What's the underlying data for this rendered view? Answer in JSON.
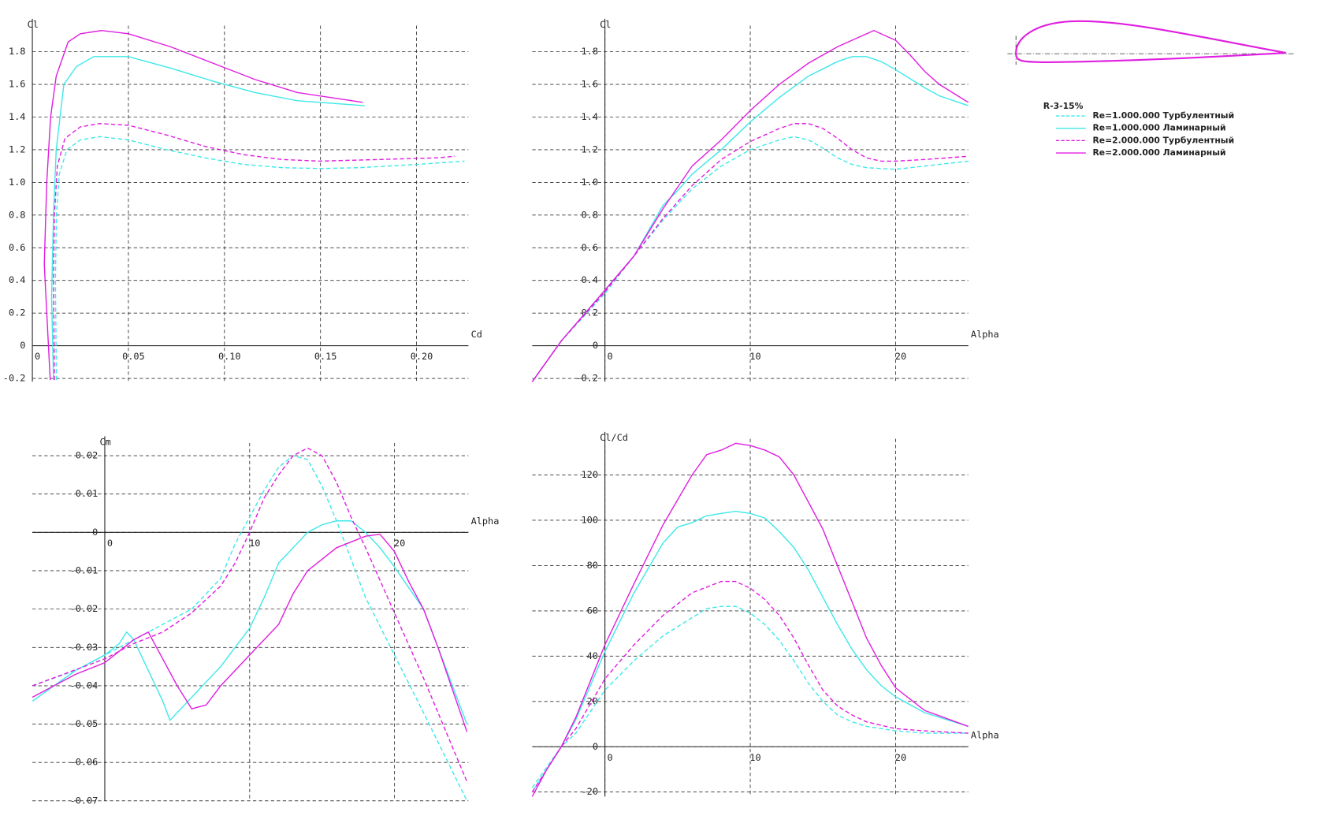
{
  "legend": {
    "title": "R-3-15%",
    "entries": [
      "Re=1.000.000 Турбулентный",
      "Re=1.000.000 Ламинарный",
      "Re=2.000.000 Турбулентный",
      "Re=2.000.000 Ламинарный"
    ]
  },
  "chart_data": [
    {
      "type": "line",
      "xlabel": "Cd",
      "ylabel": "Cl",
      "grid": true,
      "xlim": [
        0,
        0.227
      ],
      "ylim": [
        -0.22,
        1.96
      ],
      "xticks": [
        0,
        0.05,
        {
          "value": 0.1,
          "label": "0.10"
        },
        0.15,
        {
          "value": 0.2,
          "label": "0.20"
        }
      ],
      "yticks": [
        -0.2,
        0,
        0.2,
        0.4,
        0.6,
        0.8,
        {
          "value": 1,
          "label": "1.0"
        },
        1.2,
        1.4,
        1.6,
        1.8
      ],
      "series": [
        {
          "color": "#3ee8e8",
          "dashed": true,
          "x": [
            0.0125,
            0.012,
            0.0125,
            0.014,
            0.018,
            0.025,
            0.035,
            0.05,
            0.07,
            0.09,
            0.11,
            0.13,
            0.15,
            0.17,
            0.2,
            0.225
          ],
          "values": [
            -0.21,
            0.4,
            0.8,
            1.05,
            1.2,
            1.26,
            1.28,
            1.26,
            1.2,
            1.15,
            1.11,
            1.09,
            1.085,
            1.09,
            1.11,
            1.13
          ]
        },
        {
          "color": "#3ee8e8",
          "dashed": false,
          "x": [
            0.011,
            0.01,
            0.011,
            0.0124,
            0.0164,
            0.023,
            0.032,
            0.05,
            0.072,
            0.094,
            0.116,
            0.138,
            0.173
          ],
          "values": [
            -0.21,
            0.3,
            0.8,
            1.2,
            1.6,
            1.71,
            1.77,
            1.77,
            1.7,
            1.62,
            1.55,
            1.5,
            1.47
          ]
        },
        {
          "color": "#e01ee0",
          "dashed": true,
          "x": [
            0.0115,
            0.011,
            0.0115,
            0.013,
            0.017,
            0.025,
            0.035,
            0.05,
            0.07,
            0.09,
            0.11,
            0.13,
            0.15,
            0.18,
            0.21,
            0.22
          ],
          "values": [
            -0.21,
            0.4,
            0.8,
            1.1,
            1.27,
            1.34,
            1.36,
            1.35,
            1.29,
            1.22,
            1.17,
            1.14,
            1.13,
            1.14,
            1.15,
            1.16
          ]
        },
        {
          "color": "#e01ee0",
          "dashed": false,
          "x": [
            0.0093,
            0.0075,
            0.0062,
            0.0075,
            0.0095,
            0.0124,
            0.0186,
            0.025,
            0.036,
            0.05,
            0.072,
            0.094,
            0.116,
            0.138,
            0.172
          ],
          "values": [
            -0.21,
            0.2,
            0.5,
            1.0,
            1.4,
            1.65,
            1.86,
            1.91,
            1.93,
            1.91,
            1.83,
            1.73,
            1.63,
            1.55,
            1.49
          ]
        }
      ]
    },
    {
      "type": "line",
      "xlabel": "Alpha",
      "ylabel": "Cl",
      "grid": true,
      "xlim": [
        -5,
        25
      ],
      "ylim": [
        -0.22,
        1.96
      ],
      "xticks": [
        0,
        10,
        20
      ],
      "yticks": [
        -0.2,
        0,
        0.2,
        0.4,
        0.6,
        0.8,
        {
          "value": 1,
          "label": "1.0"
        },
        1.2,
        1.4,
        1.6,
        1.8
      ],
      "series": [
        {
          "color": "#3ee8e8",
          "dashed": true,
          "x": [
            -5,
            -3,
            0,
            2,
            4,
            6,
            8,
            10,
            12,
            13,
            14,
            15,
            16,
            17,
            18,
            20,
            22,
            25
          ],
          "values": [
            -0.22,
            0.03,
            0.32,
            0.55,
            0.77,
            0.96,
            1.1,
            1.2,
            1.26,
            1.28,
            1.26,
            1.21,
            1.15,
            1.11,
            1.09,
            1.08,
            1.1,
            1.13
          ]
        },
        {
          "color": "#3ee8e8",
          "dashed": false,
          "x": [
            -5,
            -3,
            0,
            2,
            4,
            5,
            6,
            8,
            10,
            12,
            14,
            16,
            17,
            18,
            19,
            20,
            22,
            23,
            25
          ],
          "values": [
            -0.22,
            0.03,
            0.34,
            0.55,
            0.86,
            0.95,
            1.05,
            1.2,
            1.37,
            1.52,
            1.65,
            1.74,
            1.77,
            1.77,
            1.74,
            1.69,
            1.58,
            1.53,
            1.47
          ]
        },
        {
          "color": "#e01ee0",
          "dashed": true,
          "x": [
            -5,
            -3,
            0,
            2,
            4,
            6,
            8,
            10,
            12,
            13,
            14,
            15,
            16,
            17,
            18,
            19,
            20,
            22,
            25
          ],
          "values": [
            -0.22,
            0.03,
            0.33,
            0.55,
            0.78,
            0.98,
            1.14,
            1.25,
            1.33,
            1.36,
            1.36,
            1.33,
            1.27,
            1.2,
            1.15,
            1.13,
            1.13,
            1.14,
            1.16
          ]
        },
        {
          "color": "#e01ee0",
          "dashed": false,
          "x": [
            -5,
            -3,
            0,
            2,
            4,
            6,
            8,
            10,
            12,
            14,
            16,
            18,
            18.5,
            20,
            21,
            22,
            23,
            25
          ],
          "values": [
            -0.22,
            0.03,
            0.34,
            0.55,
            0.84,
            1.1,
            1.26,
            1.44,
            1.6,
            1.73,
            1.83,
            1.91,
            1.93,
            1.87,
            1.78,
            1.68,
            1.6,
            1.49
          ]
        }
      ]
    },
    {
      "type": "line",
      "xlabel": "Alpha",
      "ylabel": "Cm",
      "grid": true,
      "xlim": [
        -5,
        25.1
      ],
      "ylim": [
        -0.07,
        0.0233
      ],
      "xticks": [
        0,
        10,
        20
      ],
      "yticks": [
        0.02,
        0.01,
        0,
        -0.01,
        -0.02,
        -0.03,
        -0.04,
        -0.05,
        -0.06,
        -0.07
      ],
      "series": [
        {
          "color": "#3ee8e8",
          "dashed": true,
          "x": [
            -5,
            -2,
            0,
            2,
            4,
            6,
            8,
            9,
            10,
            11,
            12,
            13,
            14,
            15,
            16,
            17,
            18,
            20,
            22,
            25
          ],
          "values": [
            -0.04,
            -0.036,
            -0.032,
            -0.028,
            -0.024,
            -0.02,
            -0.012,
            -0.003,
            0.004,
            0.011,
            0.017,
            0.02,
            0.019,
            0.012,
            0.003,
            -0.007,
            -0.017,
            -0.032,
            -0.047,
            -0.07
          ]
        },
        {
          "color": "#3ee8e8",
          "dashed": false,
          "x": [
            -5,
            -2,
            0,
            1,
            1.5,
            2,
            3,
            4,
            4.5,
            6,
            8,
            10,
            11,
            12,
            13,
            14,
            15,
            16,
            17,
            18,
            19,
            20,
            22,
            23,
            25
          ],
          "values": [
            -0.044,
            -0.036,
            -0.032,
            -0.029,
            -0.026,
            -0.028,
            -0.036,
            -0.044,
            -0.049,
            -0.043,
            -0.035,
            -0.025,
            -0.017,
            -0.008,
            -0.004,
            0,
            0.002,
            0.003,
            0.003,
            0,
            -0.004,
            -0.009,
            -0.02,
            -0.03,
            -0.05
          ]
        },
        {
          "color": "#e01ee0",
          "dashed": true,
          "x": [
            -5,
            0,
            2,
            4,
            6,
            8,
            9,
            10,
            11,
            12,
            13,
            14,
            15,
            16,
            17,
            18,
            20,
            22,
            25
          ],
          "values": [
            -0.04,
            -0.033,
            -0.029,
            -0.026,
            -0.021,
            -0.014,
            -0.008,
            0,
            0.009,
            0.015,
            0.02,
            0.022,
            0.02,
            0.013,
            0.004,
            -0.004,
            -0.021,
            -0.038,
            -0.065
          ]
        },
        {
          "color": "#e01ee0",
          "dashed": false,
          "x": [
            -5,
            -2,
            0,
            1,
            2,
            3,
            4,
            5,
            6,
            7,
            8,
            10,
            12,
            13,
            14,
            16,
            18,
            19,
            20,
            21,
            22,
            23,
            25
          ],
          "values": [
            -0.043,
            -0.037,
            -0.034,
            -0.031,
            -0.028,
            -0.026,
            -0.033,
            -0.04,
            -0.046,
            -0.045,
            -0.04,
            -0.032,
            -0.024,
            -0.016,
            -0.01,
            -0.004,
            -0.001,
            -0.0005,
            -0.005,
            -0.013,
            -0.02,
            -0.03,
            -0.052
          ]
        }
      ]
    },
    {
      "type": "line",
      "xlabel": "Alpha",
      "ylabel": "Cl/Cd",
      "grid": true,
      "xlim": [
        -5,
        25
      ],
      "ylim": [
        -22,
        136
      ],
      "xticks": [
        0,
        10,
        20
      ],
      "yticks": [
        -20,
        0,
        20,
        40,
        60,
        80,
        100,
        120
      ],
      "series": [
        {
          "color": "#3ee8e8",
          "dashed": true,
          "x": [
            -5,
            -3,
            -2,
            0,
            2,
            4,
            6,
            7,
            8,
            9,
            10,
            11,
            12,
            13,
            14,
            15,
            16,
            17,
            18,
            20,
            22,
            25
          ],
          "values": [
            -18,
            0,
            6,
            25,
            38,
            49,
            57,
            61,
            62,
            62,
            59,
            54,
            47,
            38,
            28,
            20,
            14,
            11,
            9,
            7,
            6,
            6
          ]
        },
        {
          "color": "#3ee8e8",
          "dashed": false,
          "x": [
            -5,
            -3,
            -2,
            0,
            2,
            4,
            5,
            6,
            7,
            8,
            9,
            10,
            11,
            12,
            13,
            14,
            15,
            16,
            17,
            18,
            19,
            20,
            22,
            25
          ],
          "values": [
            -20,
            0,
            12,
            42,
            68,
            90,
            97,
            99,
            102,
            103,
            104,
            103,
            101,
            95,
            88,
            78,
            66,
            54,
            43,
            34,
            27,
            22,
            15,
            9
          ]
        },
        {
          "color": "#e01ee0",
          "dashed": true,
          "x": [
            -5,
            -3,
            -2,
            0,
            2,
            4,
            6,
            8,
            9,
            10,
            11,
            12,
            13,
            14,
            15,
            16,
            17,
            18,
            20,
            22,
            25
          ],
          "values": [
            -20,
            0,
            8,
            30,
            45,
            58,
            68,
            73,
            73,
            70,
            65,
            58,
            48,
            36,
            25,
            18,
            14,
            11,
            8,
            7,
            6
          ]
        },
        {
          "color": "#e01ee0",
          "dashed": false,
          "x": [
            -5,
            -4,
            -3,
            -2,
            0,
            2,
            4,
            6,
            7,
            8,
            9,
            10,
            11,
            12,
            13,
            14,
            15,
            16,
            17,
            18,
            19,
            20,
            22,
            25
          ],
          "values": [
            -22,
            -10,
            0,
            13,
            45,
            72,
            98,
            120,
            129,
            131,
            134,
            133,
            131,
            128,
            120,
            108,
            96,
            80,
            64,
            48,
            36,
            26,
            16,
            9
          ]
        }
      ]
    }
  ]
}
